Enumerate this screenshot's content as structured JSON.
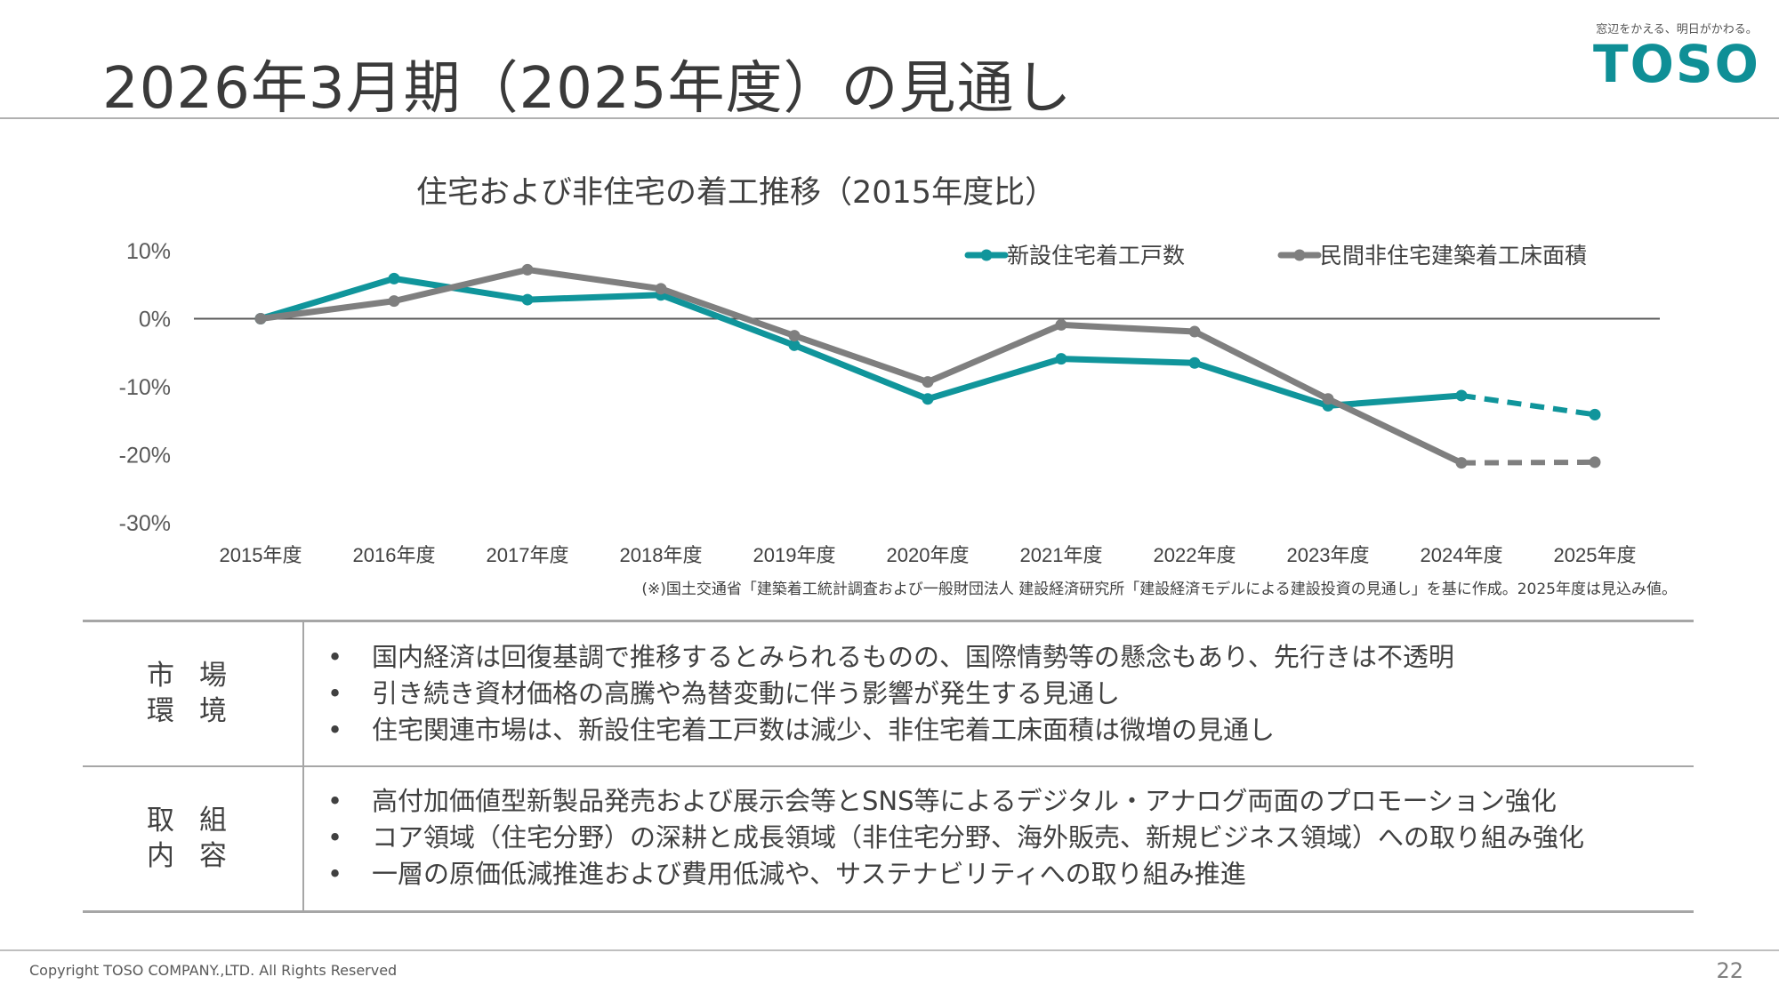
{
  "page": {
    "title": "2026年3月期（2025年度）の見通し",
    "page_number": "22",
    "copyright": "Copyright TOSO COMPANY.,LTD. All Rights Reserved"
  },
  "logo": {
    "tagline": "窓辺をかえる、明日がかわる。",
    "wordmark": "TOSO",
    "color": "#0f8f96"
  },
  "chart_data": {
    "type": "line",
    "title": "住宅および非住宅の着工推移（2015年度比）",
    "xlabel": "",
    "ylabel": "",
    "categories": [
      "2015年度",
      "2016年度",
      "2017年度",
      "2018年度",
      "2019年度",
      "2020年度",
      "2021年度",
      "2022年度",
      "2023年度",
      "2024年度",
      "2025年度"
    ],
    "ylim": [
      -30,
      10
    ],
    "y_ticks": [
      10,
      0,
      -10,
      -20,
      -30
    ],
    "y_tick_labels": [
      "10%",
      "0%",
      "-10%",
      "-20%",
      "-30%"
    ],
    "grid": false,
    "zero_line": true,
    "legend_position": "top-right",
    "projected_from_index": 9,
    "series": [
      {
        "name": "新設住宅着工戸数",
        "color": "#10959b",
        "values": [
          0,
          5.9,
          2.8,
          3.5,
          -3.9,
          -11.8,
          -5.9,
          -6.5,
          -12.8,
          -11.3,
          -14.1
        ]
      },
      {
        "name": "民間非住宅建築着工床面積",
        "color": "#7f7f7f",
        "values": [
          0,
          2.6,
          7.2,
          4.4,
          -2.5,
          -9.3,
          -0.9,
          -1.9,
          -11.8,
          -21.2,
          -21.1
        ]
      }
    ]
  },
  "source_note": "(※)国土交通省「建築着工統計調査および一般財団法人 建設経済研究所「建設経済モデルによる建設投資の見通し」を基に作成。2025年度は見込み値。",
  "table": {
    "rows": [
      {
        "label_line1": "市場",
        "label_line2": "環境",
        "bullets": [
          "国内経済は回復基調で推移するとみられるものの、国際情勢等の懸念もあり、先行きは不透明",
          "引き続き資材価格の高騰や為替変動に伴う影響が発生する見通し",
          "住宅関連市場は、新設住宅着工戸数は減少、非住宅着工床面積は微増の見通し"
        ]
      },
      {
        "label_line1": "取組",
        "label_line2": "内容",
        "bullets": [
          "高付加価値型新製品発売および展示会等とSNS等によるデジタル・アナログ両面のプロモーション強化",
          "コア領域（住宅分野）の深耕と成長領域（非住宅分野、海外販売、新規ビジネス領域）への取り組み強化",
          "一層の原価低減推進および費用低減や、サステナビリティへの取り組み推進"
        ]
      }
    ]
  }
}
